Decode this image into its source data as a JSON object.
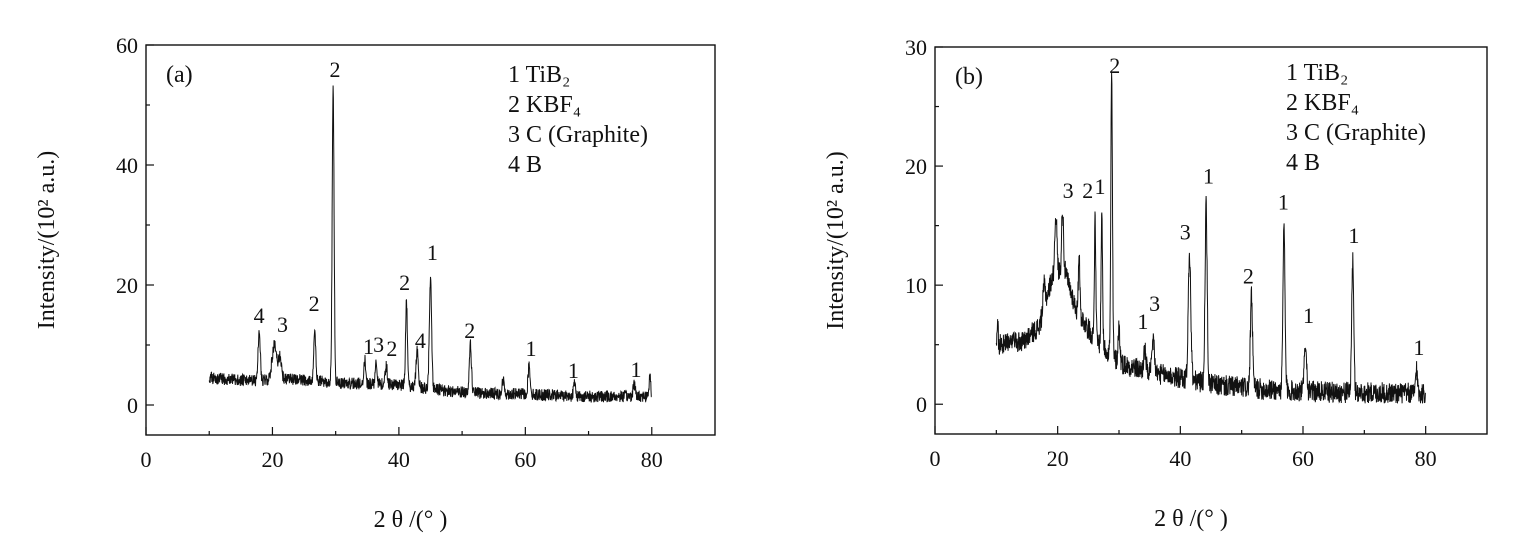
{
  "chart_data": [
    {
      "type": "line",
      "panel_label": "(a)",
      "xlabel": "2 θ /(° )",
      "ylabel": "Intensity/(10² a.u.)",
      "xlim": [
        0,
        90
      ],
      "ylim": [
        -5,
        60
      ],
      "x_ticks": [
        "0",
        "20",
        "40",
        "60",
        "80"
      ],
      "x_tick_values": [
        0,
        20,
        40,
        60,
        80
      ],
      "y_ticks": [
        "0",
        "20",
        "40",
        "60"
      ],
      "y_tick_values": [
        0,
        20,
        40,
        60
      ],
      "legend": [
        "1 TiB₂",
        "2 KBF₄",
        "3 C (Graphite)",
        "4 B"
      ],
      "baseline": [
        [
          10,
          4.5
        ],
        [
          14,
          4.2
        ],
        [
          17,
          4.0
        ],
        [
          22,
          4.3
        ],
        [
          27,
          4.0
        ],
        [
          32,
          3.6
        ],
        [
          40,
          3.4
        ],
        [
          47,
          2.4
        ],
        [
          52,
          2.0
        ],
        [
          60,
          1.8
        ],
        [
          70,
          1.4
        ],
        [
          80,
          1.5
        ]
      ],
      "peaks": [
        {
          "x": 17.9,
          "y": 12.0,
          "w": 0.3
        },
        {
          "x": 20.3,
          "y": 10.0,
          "w": 0.6
        },
        {
          "x": 21.2,
          "y": 8.0,
          "w": 0.4
        },
        {
          "x": 26.7,
          "y": 12.5,
          "w": 0.25
        },
        {
          "x": 29.6,
          "y": 53.0,
          "w": 0.25
        },
        {
          "x": 34.6,
          "y": 7.5,
          "w": 0.25
        },
        {
          "x": 36.4,
          "y": 7.5,
          "w": 0.25
        },
        {
          "x": 38.0,
          "y": 6.5,
          "w": 0.3
        },
        {
          "x": 41.2,
          "y": 17.0,
          "w": 0.25
        },
        {
          "x": 42.9,
          "y": 9.0,
          "w": 0.3
        },
        {
          "x": 45.0,
          "y": 21.0,
          "w": 0.3
        },
        {
          "x": 51.3,
          "y": 10.0,
          "w": 0.3
        },
        {
          "x": 56.5,
          "y": 4.0,
          "w": 0.3
        },
        {
          "x": 60.6,
          "y": 6.5,
          "w": 0.3
        },
        {
          "x": 67.8,
          "y": 3.5,
          "w": 0.3
        },
        {
          "x": 77.2,
          "y": 3.5,
          "w": 0.3
        },
        {
          "x": 79.7,
          "y": 5.0,
          "w": 0.2
        }
      ],
      "peak_labels": [
        {
          "x": 17.9,
          "y": 13.0,
          "text": "4"
        },
        {
          "x": 21.6,
          "y": 11.5,
          "text": "3"
        },
        {
          "x": 26.6,
          "y": 15.0,
          "text": "2"
        },
        {
          "x": 29.9,
          "y": 54.0,
          "text": "2"
        },
        {
          "x": 35.2,
          "y": 7.8,
          "text": "1"
        },
        {
          "x": 36.8,
          "y": 8.2,
          "text": "3"
        },
        {
          "x": 38.9,
          "y": 7.5,
          "text": "2"
        },
        {
          "x": 40.9,
          "y": 18.5,
          "text": "2"
        },
        {
          "x": 43.4,
          "y": 8.8,
          "text": "4"
        },
        {
          "x": 45.3,
          "y": 23.5,
          "text": "1"
        },
        {
          "x": 51.2,
          "y": 10.5,
          "text": "2"
        },
        {
          "x": 60.9,
          "y": 7.5,
          "text": "1"
        },
        {
          "x": 67.6,
          "y": 3.8,
          "text": "1"
        },
        {
          "x": 77.5,
          "y": 4.0,
          "text": "1"
        }
      ]
    },
    {
      "type": "line",
      "panel_label": "(b)",
      "xlabel": "2 θ /(° )",
      "ylabel": "Intensity/(10² a.u.)",
      "xlim": [
        0,
        90
      ],
      "ylim": [
        -2.5,
        30
      ],
      "x_ticks": [
        "0",
        "20",
        "40",
        "60",
        "80"
      ],
      "x_tick_values": [
        0,
        20,
        40,
        60,
        80
      ],
      "y_ticks": [
        "0",
        "10",
        "20",
        "30"
      ],
      "y_tick_values": [
        0,
        10,
        20,
        30
      ],
      "legend": [
        "1 TiB₂",
        "2 KBF₄",
        "3 C (Graphite)",
        "4 B"
      ],
      "baseline": [
        [
          10,
          5.0
        ],
        [
          14,
          5.2
        ],
        [
          17,
          6.5
        ],
        [
          19,
          10.5
        ],
        [
          21,
          11.5
        ],
        [
          23,
          8.0
        ],
        [
          26,
          5.5
        ],
        [
          30,
          3.5
        ],
        [
          34,
          2.8
        ],
        [
          40,
          2.2
        ],
        [
          46,
          1.6
        ],
        [
          55,
          1.2
        ],
        [
          65,
          1.0
        ],
        [
          80,
          0.9
        ]
      ],
      "peaks": [
        {
          "x": 10.2,
          "y": 7.0,
          "w": 0.15
        },
        {
          "x": 17.8,
          "y": 10.0,
          "w": 0.3
        },
        {
          "x": 19.7,
          "y": 16.0,
          "w": 0.3
        },
        {
          "x": 20.8,
          "y": 16.5,
          "w": 0.25
        },
        {
          "x": 23.5,
          "y": 13.0,
          "w": 0.2
        },
        {
          "x": 26.1,
          "y": 15.5,
          "w": 0.2
        },
        {
          "x": 27.2,
          "y": 16.0,
          "w": 0.2
        },
        {
          "x": 28.8,
          "y": 27.5,
          "w": 0.22
        },
        {
          "x": 30.0,
          "y": 6.5,
          "w": 0.25
        },
        {
          "x": 34.2,
          "y": 4.5,
          "w": 0.3
        },
        {
          "x": 35.6,
          "y": 5.5,
          "w": 0.3
        },
        {
          "x": 41.5,
          "y": 12.5,
          "w": 0.35
        },
        {
          "x": 44.2,
          "y": 17.0,
          "w": 0.28
        },
        {
          "x": 51.6,
          "y": 9.0,
          "w": 0.3
        },
        {
          "x": 56.9,
          "y": 14.8,
          "w": 0.28
        },
        {
          "x": 60.4,
          "y": 5.5,
          "w": 0.3
        },
        {
          "x": 68.1,
          "y": 12.0,
          "w": 0.28
        },
        {
          "x": 78.5,
          "y": 3.0,
          "w": 0.25
        }
      ],
      "peak_labels": [
        {
          "x": 21.7,
          "y": 17.0,
          "text": "3"
        },
        {
          "x": 24.9,
          "y": 17.0,
          "text": "2"
        },
        {
          "x": 26.9,
          "y": 17.3,
          "text": "1"
        },
        {
          "x": 29.3,
          "y": 27.5,
          "text": "2"
        },
        {
          "x": 33.9,
          "y": 6.0,
          "text": "1"
        },
        {
          "x": 35.8,
          "y": 7.5,
          "text": "3"
        },
        {
          "x": 40.8,
          "y": 13.5,
          "text": "3"
        },
        {
          "x": 44.6,
          "y": 18.2,
          "text": "1"
        },
        {
          "x": 51.1,
          "y": 9.8,
          "text": "2"
        },
        {
          "x": 56.8,
          "y": 16.0,
          "text": "1"
        },
        {
          "x": 60.9,
          "y": 6.5,
          "text": "1"
        },
        {
          "x": 68.3,
          "y": 13.2,
          "text": "1"
        },
        {
          "x": 78.9,
          "y": 3.8,
          "text": "1"
        }
      ]
    }
  ]
}
